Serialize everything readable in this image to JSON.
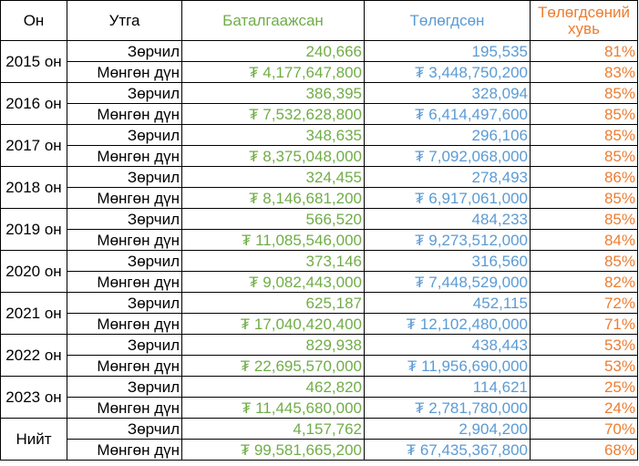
{
  "headers": {
    "year": "Он",
    "type": "Утга",
    "confirmed": "Баталгаажсан",
    "paid": "Төлөгдсөн",
    "pct": "Төлөгдсөний хувь"
  },
  "groups": [
    {
      "year": "2015 он",
      "rows": [
        {
          "type": "Зөрчил",
          "confirmed": "240,666",
          "paid": "195,535",
          "pct": "81%"
        },
        {
          "type": "Мөнгөн дүн",
          "confirmed": "₮ 4,177,647,800",
          "paid": "₮ 3,448,750,200",
          "pct": "83%"
        }
      ]
    },
    {
      "year": "2016 он",
      "rows": [
        {
          "type": "Зөрчил",
          "confirmed": "386,395",
          "paid": "328,094",
          "pct": "85%"
        },
        {
          "type": "Мөнгөн дүн",
          "confirmed": "₮ 7,532,628,800",
          "paid": "₮ 6,414,497,600",
          "pct": "85%"
        }
      ]
    },
    {
      "year": "2017 он",
      "rows": [
        {
          "type": "Зөрчил",
          "confirmed": "348,635",
          "paid": "296,106",
          "pct": "85%"
        },
        {
          "type": "Мөнгөн дүн",
          "confirmed": "₮ 8,375,048,000",
          "paid": "₮ 7,092,068,000",
          "pct": "85%"
        }
      ]
    },
    {
      "year": "2018 он",
      "rows": [
        {
          "type": "Зөрчил",
          "confirmed": "324,455",
          "paid": "278,493",
          "pct": "86%"
        },
        {
          "type": "Мөнгөн дүн",
          "confirmed": "₮ 8,146,681,200",
          "paid": "₮ 6,917,061,000",
          "pct": "85%"
        }
      ]
    },
    {
      "year": "2019 он",
      "rows": [
        {
          "type": "Зөрчил",
          "confirmed": "566,520",
          "paid": "484,233",
          "pct": "85%"
        },
        {
          "type": "Мөнгөн дүн",
          "confirmed": "₮ 11,085,546,000",
          "paid": "₮ 9,273,512,000",
          "pct": "84%"
        }
      ]
    },
    {
      "year": "2020 он",
      "rows": [
        {
          "type": "Зөрчил",
          "confirmed": "373,146",
          "paid": "316,560",
          "pct": "85%"
        },
        {
          "type": "Мөнгөн дүн",
          "confirmed": "₮ 9,082,443,000",
          "paid": "₮ 7,448,529,000",
          "pct": "82%"
        }
      ]
    },
    {
      "year": "2021 он",
      "rows": [
        {
          "type": "Зөрчил",
          "confirmed": "625,187",
          "paid": "452,115",
          "pct": "72%"
        },
        {
          "type": "Мөнгөн дүн",
          "confirmed": "₮ 17,040,420,400",
          "paid": "₮ 12,102,480,000",
          "pct": "71%"
        }
      ]
    },
    {
      "year": "2022 он",
      "rows": [
        {
          "type": "Зөрчил",
          "confirmed": "829,938",
          "paid": "438,443",
          "pct": "53%"
        },
        {
          "type": "Мөнгөн дүн",
          "confirmed": "₮ 22,695,570,000",
          "paid": "₮ 11,956,690,000",
          "pct": "53%"
        }
      ]
    },
    {
      "year": "2023 он",
      "rows": [
        {
          "type": "Зөрчил",
          "confirmed": "462,820",
          "paid": "114,621",
          "pct": "25%"
        },
        {
          "type": "Мөнгөн дүн",
          "confirmed": "₮ 11,445,680,000",
          "paid": "₮ 2,781,780,000",
          "pct": "24%"
        }
      ]
    },
    {
      "year": "Нийт",
      "rows": [
        {
          "type": "Зөрчил",
          "confirmed": "4,157,762",
          "paid": "2,904,200",
          "pct": "70%"
        },
        {
          "type": "Мөнгөн дүн",
          "confirmed": "₮ 99,581,665,200",
          "paid": "₮ 67,435,367,800",
          "pct": "68%"
        }
      ]
    }
  ]
}
